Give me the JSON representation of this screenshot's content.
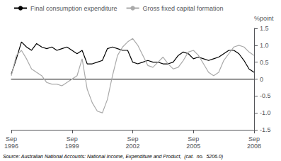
{
  "chart_data": {
    "type": "line",
    "y_label": "%point",
    "annotation": "Source: Australian National Accounts: National Income, Expenditure and Product,  (cat.  no.  5206.0)",
    "categories": [
      "Sep\n1996",
      null,
      null,
      null,
      null,
      null,
      null,
      null,
      null,
      null,
      null,
      null,
      "Sep\n1999",
      null,
      null,
      null,
      null,
      null,
      null,
      null,
      null,
      null,
      null,
      null,
      "Sep\n2002",
      null,
      null,
      null,
      null,
      null,
      null,
      null,
      null,
      null,
      null,
      null,
      "Sep\n2005",
      null,
      null,
      null,
      null,
      null,
      null,
      null,
      null,
      null,
      null,
      null,
      "Sep\n2008"
    ],
    "series": [
      {
        "name": "Final consumption expenditure",
        "color": "#000000",
        "values": [
          0.15,
          0.6,
          1.1,
          0.95,
          0.85,
          1.05,
          0.95,
          0.9,
          0.95,
          0.85,
          0.9,
          0.95,
          0.85,
          0.75,
          0.85,
          0.45,
          0.45,
          0.5,
          0.55,
          0.9,
          0.95,
          0.9,
          0.85,
          0.85,
          0.5,
          0.45,
          0.5,
          0.55,
          0.5,
          0.5,
          0.45,
          0.45,
          0.5,
          0.7,
          0.8,
          0.75,
          0.6,
          0.65,
          0.6,
          0.55,
          0.6,
          0.65,
          0.75,
          0.85,
          0.85,
          0.75,
          0.55,
          0.3,
          0.2
        ]
      },
      {
        "name": "Gross fixed capital formation",
        "color": "#aaaaaa",
        "values": [
          0.1,
          0.7,
          0.85,
          0.6,
          0.3,
          0.2,
          0.1,
          -0.1,
          -0.15,
          -0.15,
          -0.2,
          -0.1,
          0.0,
          0.1,
          0.6,
          -0.3,
          -0.7,
          -0.95,
          -1.0,
          -0.6,
          0.1,
          0.7,
          0.95,
          1.1,
          1.2,
          1.0,
          0.7,
          0.4,
          0.35,
          0.5,
          0.65,
          0.45,
          0.3,
          0.35,
          0.55,
          0.8,
          0.85,
          0.7,
          0.45,
          0.2,
          0.1,
          0.2,
          0.55,
          0.75,
          0.95,
          1.0,
          0.95,
          0.8,
          0.7
        ]
      }
    ],
    "ylim": [
      -1.5,
      1.5
    ],
    "yticks": [
      -1.5,
      {
        "value": -1,
        "label": "-1.0"
      },
      -0.5,
      0,
      0.5,
      {
        "value": 1,
        "label": "1.0"
      },
      1.5
    ],
    "grid": false,
    "legend": "upper left"
  }
}
